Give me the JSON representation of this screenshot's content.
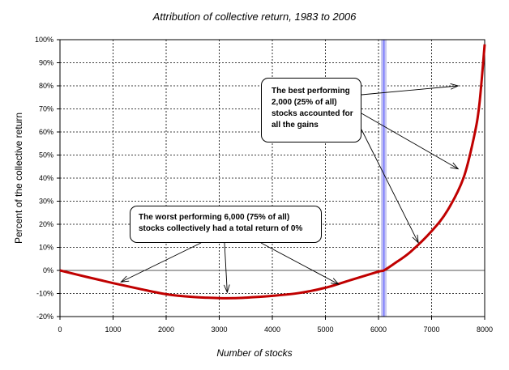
{
  "chart_data": {
    "type": "line",
    "title": "Attribution of collective return, 1983 to 2006",
    "xlabel": "Number of stocks",
    "ylabel": "Percent of the collective return",
    "xlim": [
      0,
      8000
    ],
    "ylim": [
      -20,
      100
    ],
    "x_ticks": [
      "0",
      "1000",
      "2000",
      "3000",
      "4000",
      "5000",
      "6000",
      "7000",
      "8000"
    ],
    "y_ticks": [
      "-20%",
      "-10%",
      "0%",
      "10%",
      "20%",
      "30%",
      "40%",
      "50%",
      "60%",
      "70%",
      "80%",
      "90%",
      "100%"
    ],
    "grid": true,
    "series": [
      {
        "color": "#c00000",
        "x": [
          0,
          500,
          1000,
          1500,
          2000,
          2500,
          3000,
          3300,
          3500,
          4000,
          4500,
          5000,
          5500,
          6000,
          6100,
          6300,
          6600,
          7000,
          7300,
          7600,
          7800,
          7900,
          8000
        ],
        "y": [
          0,
          -2.8,
          -5.5,
          -8,
          -10.3,
          -11.5,
          -12,
          -12,
          -11.8,
          -11,
          -9.8,
          -7.5,
          -4,
          -0.5,
          0,
          3,
          8,
          17,
          26,
          40,
          58,
          72,
          98
        ]
      }
    ],
    "reference_line": {
      "x": 6100,
      "color": "#8080ff"
    },
    "annotations": [
      {
        "lines": [
          "The best performing",
          "2,000 (25% of all)",
          "stocks accounted for",
          "all the gains"
        ],
        "arrow_targets": [
          [
            7500,
            80
          ],
          [
            7500,
            44
          ],
          [
            6750,
            12
          ]
        ]
      },
      {
        "lines": [
          "The worst performing  6,000 (75% of all)",
          "stocks collectively had a total  return of 0%"
        ],
        "arrow_targets": [
          [
            1150,
            -5
          ],
          [
            3150,
            -9.5
          ],
          [
            5250,
            -6
          ]
        ]
      }
    ]
  }
}
